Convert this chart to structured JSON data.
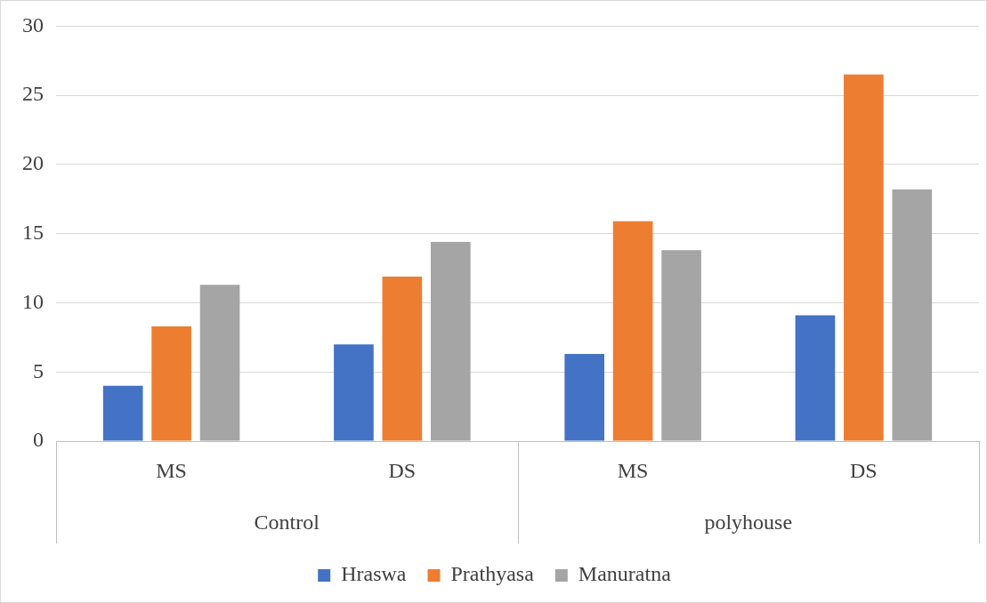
{
  "chart_data": {
    "type": "bar",
    "categories": [
      "MS",
      "DS",
      "MS",
      "DS"
    ],
    "series": [
      {
        "name": "Hraswa",
        "color": "#4472c4",
        "values": [
          4.0,
          7.0,
          6.3,
          9.1
        ]
      },
      {
        "name": "Prathyasa",
        "color": "#ed7d31",
        "values": [
          8.3,
          11.9,
          15.9,
          26.5
        ]
      },
      {
        "name": "Manuratna",
        "color": "#a5a5a5",
        "values": [
          11.3,
          14.4,
          13.8,
          18.2
        ]
      }
    ],
    "annotations": [
      "Control",
      "polyhouse"
    ],
    "ylim": [
      0,
      30
    ],
    "yticks": [
      0,
      5,
      10,
      15,
      20,
      25,
      30
    ],
    "grid": "y",
    "legend": "bottom"
  }
}
